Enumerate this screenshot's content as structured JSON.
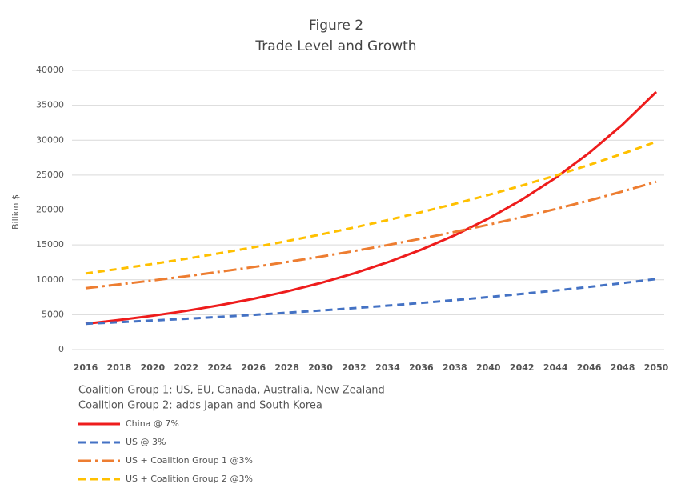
{
  "chart_data": {
    "type": "line",
    "title": "Figure 2",
    "subtitle": "Trade Level and Growth",
    "y_label": "Billion $",
    "notes": [
      "Coalition Group 1: US, EU, Canada, Australia, New Zealand",
      "Coalition Group 2: adds Japan and South Korea"
    ],
    "x": [
      2016,
      2018,
      2020,
      2022,
      2024,
      2026,
      2028,
      2030,
      2032,
      2034,
      2036,
      2038,
      2040,
      2042,
      2044,
      2046,
      2048,
      2050
    ],
    "xlim": [
      2016,
      2050
    ],
    "ylim": [
      0,
      40000
    ],
    "yticks": [
      0,
      5000,
      10000,
      15000,
      20000,
      25000,
      30000,
      35000,
      40000
    ],
    "grid": true,
    "series": [
      {
        "name": "China @ 7%",
        "color": "#ee1c1c",
        "dash": "solid",
        "values": [
          3700,
          4240,
          4850,
          5550,
          6360,
          7280,
          8330,
          9540,
          10920,
          12510,
          14320,
          16390,
          18770,
          21490,
          24600,
          28170,
          32250,
          36920
        ]
      },
      {
        "name": "US @ 3%",
        "color": "#4472c4",
        "dash": "dashed",
        "values": [
          3700,
          3925,
          4164,
          4418,
          4687,
          4973,
          5276,
          5597,
          5938,
          6299,
          6683,
          7090,
          7522,
          7980,
          8466,
          8981,
          9528,
          10108
        ]
      },
      {
        "name": "US + Coalition Group 1 @3%",
        "color": "#ed7d31",
        "dash": "dashdot",
        "values": [
          8800,
          9336,
          9904,
          10508,
          11148,
          11827,
          12547,
          13311,
          14121,
          14981,
          15894,
          16861,
          17888,
          18978,
          20134,
          21360,
          22661,
          24041
        ]
      },
      {
        "name": "US + Coalition Group 2 @3%",
        "color": "#ffc000",
        "dash": "dashed",
        "values": [
          10900,
          11564,
          12268,
          13015,
          13808,
          14649,
          15541,
          16487,
          17491,
          18556,
          19686,
          20885,
          22157,
          23506,
          24938,
          26456,
          28067,
          29777
        ]
      }
    ]
  }
}
